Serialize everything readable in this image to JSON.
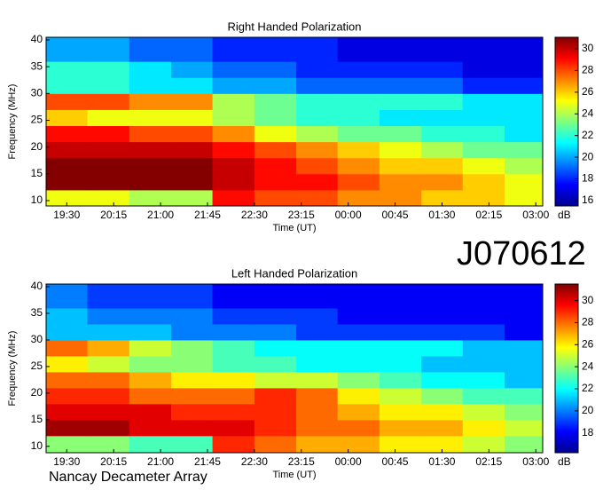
{
  "heading": "J070612",
  "footer": "Nancay Decameter Array",
  "chart_data": [
    {
      "type": "heatmap",
      "title": "Right Handed Polarization",
      "xlabel": "Time (UT)",
      "ylabel": "Frequency (MHz)",
      "colorbar_label": "dB",
      "xlim": [
        19.17,
        27.11
      ],
      "ylim": [
        9,
        40.5
      ],
      "clim": [
        15.5,
        31.07
      ],
      "xticks": [
        {
          "value": 19.5,
          "label": "19:30"
        },
        {
          "value": 20.25,
          "label": "20:15"
        },
        {
          "value": 21,
          "label": "21:00"
        },
        {
          "value": 21.75,
          "label": "21:45"
        },
        {
          "value": 22.5,
          "label": "22:30"
        },
        {
          "value": 23.25,
          "label": "23:15"
        },
        {
          "value": 24,
          "label": "00:00"
        },
        {
          "value": 24.75,
          "label": "00:45"
        },
        {
          "value": 25.5,
          "label": "01:30"
        },
        {
          "value": 26.25,
          "label": "02:15"
        },
        {
          "value": 27,
          "label": "03:00"
        }
      ],
      "yticks": [
        10,
        15,
        20,
        25,
        30,
        35,
        40
      ],
      "cticks": [
        16,
        18,
        20,
        22,
        24,
        26,
        28,
        30
      ],
      "xbins": [
        19.17,
        19.83,
        20.5,
        21.17,
        21.83,
        22.5,
        23.17,
        23.83,
        24.5,
        25.17,
        25.83,
        26.5,
        27.11
      ],
      "ybins": [
        9,
        12,
        15,
        18,
        21,
        24,
        27,
        30,
        33,
        36,
        40.5
      ],
      "z": [
        [
          25,
          25,
          24,
          24,
          29,
          28,
          28,
          27,
          27,
          26,
          26,
          25
        ],
        [
          31,
          31,
          31,
          31,
          30,
          29,
          29,
          28,
          27,
          27,
          26,
          25
        ],
        [
          31,
          31,
          31,
          31,
          30,
          29,
          28,
          27,
          26,
          26,
          25,
          24
        ],
        [
          30,
          30,
          30,
          30,
          29,
          28,
          27,
          26,
          25,
          24,
          23,
          23
        ],
        [
          29,
          29,
          28,
          28,
          27,
          25,
          24,
          23,
          23,
          22,
          22,
          21
        ],
        [
          26,
          25,
          25,
          25,
          24,
          23,
          22,
          22,
          21,
          21,
          21,
          21
        ],
        [
          28,
          28,
          27,
          27,
          24,
          23,
          22,
          22,
          22,
          22,
          21,
          21
        ],
        [
          22,
          22,
          21,
          21,
          20,
          20,
          19,
          19,
          19,
          19,
          18,
          18
        ],
        [
          22,
          22,
          21,
          20,
          19,
          19,
          18,
          18,
          18,
          18,
          17,
          17
        ],
        [
          20,
          20,
          19,
          19,
          18,
          18,
          18,
          17,
          17,
          17,
          17,
          17
        ]
      ]
    },
    {
      "type": "heatmap",
      "title": "Left Handed Polarization",
      "xlabel": "Time (UT)",
      "ylabel": "Frequency (MHz)",
      "colorbar_label": "dB",
      "xlim": [
        19.17,
        27.11
      ],
      "ylim": [
        8.8,
        40.5
      ],
      "clim": [
        16.2,
        31.5
      ],
      "xticks": [
        {
          "value": 19.5,
          "label": "19:30"
        },
        {
          "value": 20.25,
          "label": "20:15"
        },
        {
          "value": 21,
          "label": "21:00"
        },
        {
          "value": 21.75,
          "label": "21:45"
        },
        {
          "value": 22.5,
          "label": "22:30"
        },
        {
          "value": 23.25,
          "label": "23:15"
        },
        {
          "value": 24,
          "label": "00:00"
        },
        {
          "value": 24.75,
          "label": "00:45"
        },
        {
          "value": 25.5,
          "label": "01:30"
        },
        {
          "value": 26.25,
          "label": "02:15"
        },
        {
          "value": 27,
          "label": "03:00"
        }
      ],
      "yticks": [
        10,
        15,
        20,
        25,
        30,
        35,
        40
      ],
      "cticks": [
        18,
        20,
        22,
        24,
        26,
        28,
        30
      ],
      "xbins": [
        19.17,
        19.83,
        20.5,
        21.17,
        21.83,
        22.5,
        23.17,
        23.83,
        24.5,
        25.17,
        25.83,
        26.5,
        27.11
      ],
      "ybins": [
        8.8,
        12,
        15,
        18,
        21,
        24,
        27,
        30,
        33,
        36,
        40.5
      ],
      "z": [
        [
          24,
          24,
          23,
          23,
          29,
          28,
          27,
          27,
          26,
          26,
          25,
          24
        ],
        [
          31,
          31,
          30,
          30,
          30,
          29,
          28,
          28,
          27,
          27,
          26,
          25
        ],
        [
          30,
          30,
          30,
          29,
          29,
          29,
          28,
          27,
          26,
          26,
          25,
          24
        ],
        [
          29,
          29,
          28,
          28,
          28,
          29,
          28,
          26,
          25,
          24,
          23,
          23
        ],
        [
          28,
          28,
          27,
          26,
          26,
          25,
          25,
          24,
          23,
          22,
          22,
          21
        ],
        [
          26,
          25,
          24,
          24,
          23,
          23,
          22,
          22,
          22,
          21,
          21,
          21
        ],
        [
          28,
          27,
          25,
          24,
          23,
          22,
          22,
          22,
          22,
          22,
          21,
          21
        ],
        [
          21,
          21,
          21,
          20,
          20,
          20,
          19,
          19,
          19,
          19,
          19,
          18
        ],
        [
          21,
          20,
          20,
          20,
          19,
          19,
          19,
          18,
          18,
          18,
          18,
          18
        ],
        [
          20,
          19,
          19,
          19,
          18,
          18,
          18,
          18,
          18,
          18,
          18,
          18
        ]
      ]
    }
  ]
}
